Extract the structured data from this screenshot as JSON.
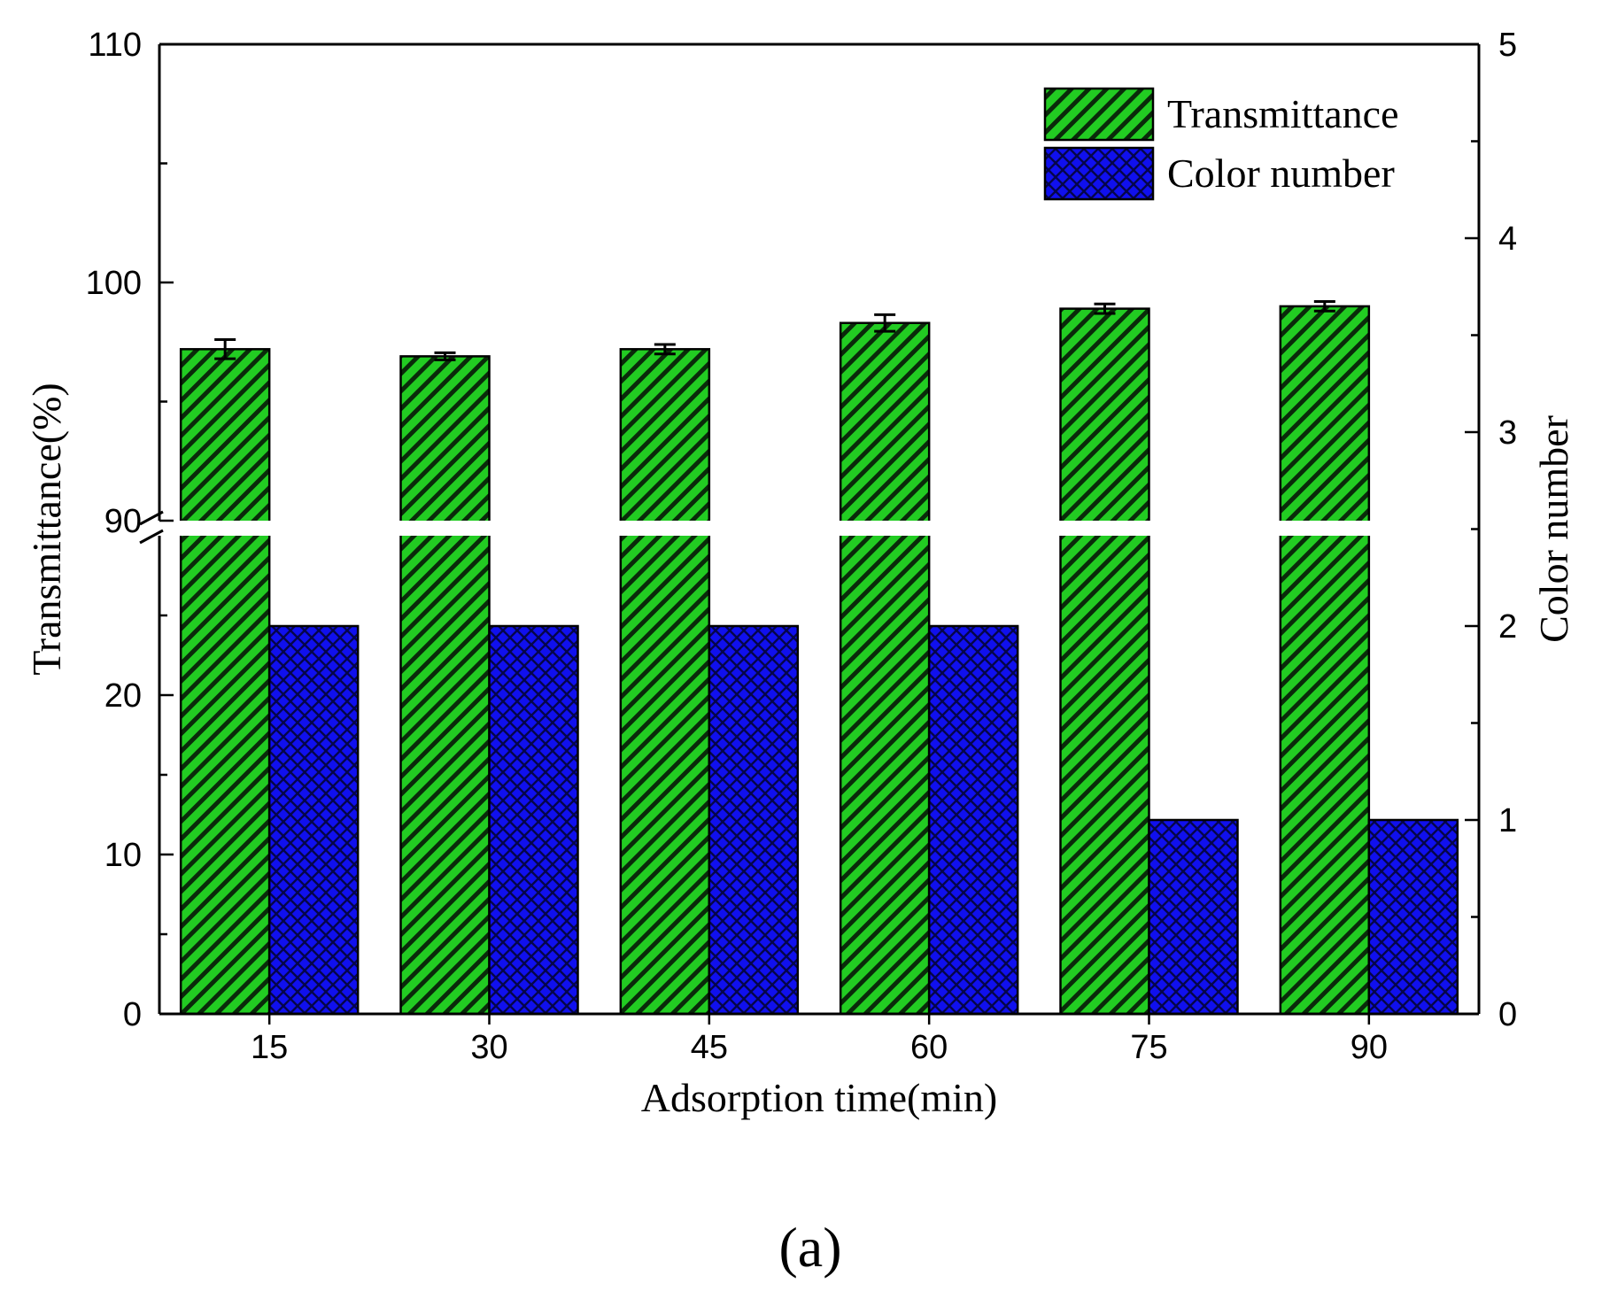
{
  "chart_data": {
    "type": "bar",
    "xlabel": "Adsorption time(min)",
    "ylabel_left": "Transmittance(%)",
    "ylabel_right": "Color number",
    "categories": [
      "15",
      "30",
      "45",
      "60",
      "75",
      "90"
    ],
    "series": [
      {
        "name": "Transmittance",
        "axis": "left",
        "values": [
          97.2,
          96.9,
          97.2,
          98.3,
          98.9,
          99.0
        ],
        "errors": [
          0.4,
          0.15,
          0.2,
          0.35,
          0.2,
          0.2
        ],
        "color": "#22cc22"
      },
      {
        "name": "Color number",
        "axis": "right",
        "values": [
          2,
          2,
          2,
          2,
          1,
          1
        ],
        "color": "#1010ee"
      }
    ],
    "y_left": {
      "broken": true,
      "lower_range": [
        0,
        30
      ],
      "upper_range": [
        90,
        110
      ],
      "lower_ticks": [
        "0",
        "10",
        "20"
      ],
      "upper_ticks": [
        "90",
        "100",
        "110"
      ]
    },
    "y_right": {
      "range": [
        0,
        5
      ],
      "ticks": [
        "0",
        "1",
        "2",
        "3",
        "4",
        "5"
      ]
    },
    "legend_position": "top-right",
    "grid": false
  },
  "panel_label": "(a)"
}
